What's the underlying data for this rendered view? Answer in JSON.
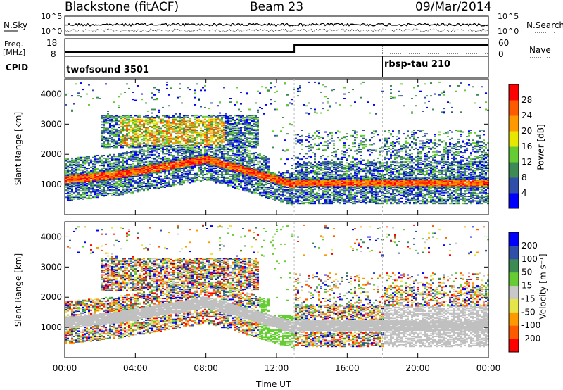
{
  "header": {
    "station": "Blackstone (fitACF)",
    "beam": "Beam 23",
    "date": "09/Mar/2014"
  },
  "top_panel": {
    "left_label": "N.Sky",
    "right_label": "N.Search",
    "tick_top": "10^5",
    "tick_bottom": "10^0"
  },
  "freq_panel": {
    "left_label_line1": "Freq.",
    "left_label_line2": "[MHz]",
    "left_ticks": [
      "18",
      "8"
    ],
    "right_label": "Nave",
    "right_ticks": [
      "60",
      "0"
    ]
  },
  "cpid_panel": {
    "label": "CPID",
    "programs": [
      "twofsound 3501",
      "rbsp-tau 210"
    ]
  },
  "colors": {
    "power_scale": [
      "#0000ff",
      "#2f4fa8",
      "#3d8a55",
      "#66cc33",
      "#e7e700",
      "#ff9900",
      "#ff5a00",
      "#ff0000"
    ],
    "velocity_scale": [
      "#ff0000",
      "#ff5a00",
      "#ff9900",
      "#e5e54a",
      "#c8c8c8",
      "#66cc33",
      "#3d8a55",
      "#2f4fa8",
      "#0000ff"
    ],
    "ground_scatter": "#c0c0c0"
  },
  "chart_data": [
    {
      "type": "heatmap",
      "panel": "power",
      "xlabel": "",
      "ylabel": "Slant Range [km]",
      "x_ticks": [
        "00:00",
        "04:00",
        "08:00",
        "12:00",
        "16:00",
        "20:00",
        "00:00"
      ],
      "y_ticks": [
        1000,
        2000,
        3000,
        4000
      ],
      "ylim": [
        0,
        4500
      ],
      "xlim_hours": [
        0,
        24
      ],
      "colorbar": {
        "label": "Power [dB]",
        "ticks": [
          4,
          8,
          12,
          16,
          20,
          24,
          28
        ],
        "range": [
          0,
          32
        ]
      },
      "features": [
        {
          "description": "main echo band",
          "time_start_h": 0,
          "time_end_h": 24,
          "range_km": [
            900,
            1500
          ]
        },
        {
          "description": "upper scatter patches",
          "time_start_h": 2,
          "time_end_h": 11,
          "range_km": [
            2200,
            3300
          ]
        }
      ]
    },
    {
      "type": "heatmap",
      "panel": "velocity",
      "xlabel": "Time UT",
      "ylabel": "Slant Range [km]",
      "x_ticks": [
        "00:00",
        "04:00",
        "08:00",
        "12:00",
        "16:00",
        "20:00",
        "00:00"
      ],
      "y_ticks": [
        1000,
        2000,
        3000,
        4000
      ],
      "ylim": [
        0,
        4500
      ],
      "xlim_hours": [
        0,
        24
      ],
      "colorbar": {
        "label": "Velocity [m s⁻¹]",
        "ticks": [
          200,
          100,
          50,
          15,
          -15,
          -50,
          -100,
          -200
        ]
      }
    }
  ]
}
